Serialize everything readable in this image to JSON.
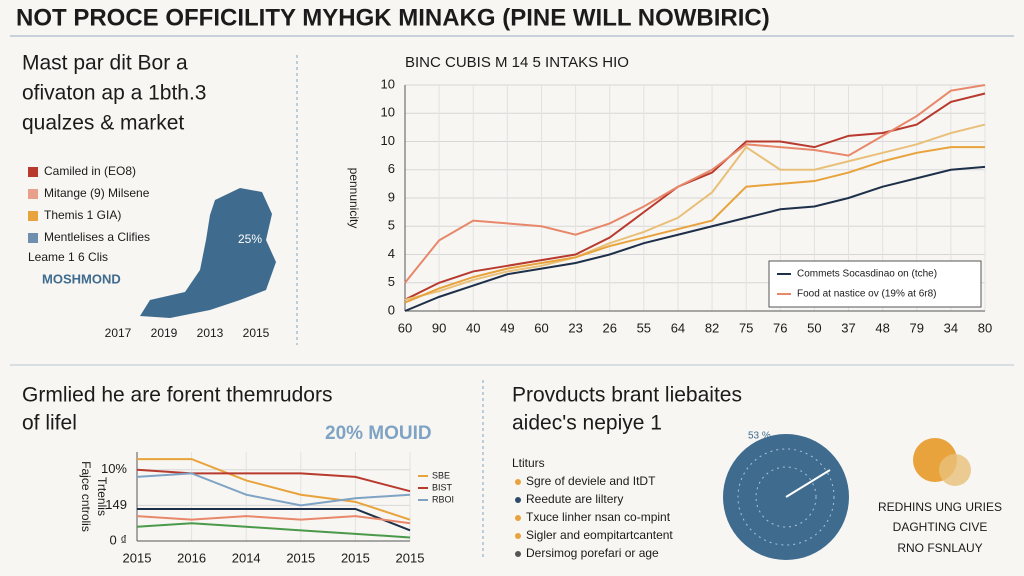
{
  "header": {
    "title": "NOT PROCE OFFICILITY MYHGK MINAKG (PINE WILL NOWBIRIC)"
  },
  "top_left": {
    "heading": [
      "Mast par dit Bor a",
      "ofivaton ap a 1bth.3",
      "qualzes & market"
    ],
    "legend": [
      {
        "label": "Camiled in (EO8)",
        "color": "#b83a2e"
      },
      {
        "label": "Mitange (9) Milsene",
        "color": "#e8a08a"
      },
      {
        "label": "Themis 1 GIA)",
        "color": "#e8a33c"
      },
      {
        "label": "Mentlelises a Clifies",
        "color": "#6f8fae"
      }
    ],
    "note": "Leame 1 6 Clis",
    "map_label": "MOSHMOND",
    "map_value": "25%",
    "years": [
      "2017",
      "2019",
      "2013",
      "2015"
    ]
  },
  "bottom_left": {
    "heading": [
      "Grmlied he are forent themrudors",
      "of lifel"
    ],
    "badge": "20% MOUID"
  },
  "bottom_right": {
    "heading": [
      "Provducts brant liebaites",
      "aidec's nepiye 1"
    ],
    "list_title": "Ltiturs",
    "items": [
      {
        "text": "Sgre of deviele and ItDT",
        "color": "#e8a33c"
      },
      {
        "text": "Reedute are liltery",
        "color": "#2e4a6b"
      },
      {
        "text": "Txuce linher nsan co-mpint",
        "color": "#e8a33c"
      },
      {
        "text": "Sigler and eompitartcantent",
        "color": "#e8a33c"
      },
      {
        "text": "Dersimog porefari or age",
        "color": "#555555"
      }
    ],
    "dial_label": "53 %",
    "side_text": [
      "REDHINS UNG URIES",
      "DAGHTING CIVE",
      "RNO FSNLAUY"
    ]
  },
  "chart_data": [
    {
      "type": "line",
      "title": "BINC CUBIS M 14 5 INTAKS HIO",
      "y_label": "pennunicity",
      "categories": [
        "60",
        "90",
        "40",
        "49",
        "60",
        "23",
        "26",
        "55",
        "64",
        "82",
        "75",
        "76",
        "50",
        "37",
        "48",
        "79",
        "34",
        "80"
      ],
      "ylim": [
        0,
        8
      ],
      "yticks": [
        0,
        {
          "value": 1,
          "label": "5"
        },
        {
          "value": 2,
          "label": "4"
        },
        {
          "value": 3,
          "label": "5"
        },
        {
          "value": 4,
          "label": "9"
        },
        {
          "value": 5,
          "label": "6"
        },
        {
          "value": 6,
          "label": "10"
        },
        {
          "value": 7,
          "label": "10"
        },
        {
          "value": 8,
          "label": "10"
        }
      ],
      "grid": true,
      "legend": "bottom-right",
      "series": [
        {
          "color": "#b83a2e",
          "values": [
            0.4,
            1.0,
            1.4,
            1.6,
            1.8,
            2.0,
            2.6,
            3.5,
            4.4,
            4.9,
            6.0,
            6.0,
            5.8,
            6.2,
            6.3,
            6.6,
            7.4,
            7.7
          ]
        },
        {
          "color": "#e8c07a",
          "values": [
            0.4,
            0.7,
            1.1,
            1.4,
            1.6,
            1.9,
            2.4,
            2.8,
            3.3,
            4.2,
            5.8,
            5.0,
            5.0,
            5.3,
            5.6,
            5.9,
            6.3,
            6.6
          ]
        },
        {
          "color": "#e8a33c",
          "values": [
            0.3,
            0.8,
            1.2,
            1.5,
            1.7,
            1.9,
            2.3,
            2.6,
            2.9,
            3.2,
            4.4,
            4.5,
            4.6,
            4.9,
            5.3,
            5.6,
            5.8,
            5.8
          ]
        },
        {
          "name": "Commets Socasdinao on (tche)",
          "color": "#1e2f4a",
          "values": [
            0,
            0.5,
            0.9,
            1.3,
            1.5,
            1.7,
            2.0,
            2.4,
            2.7,
            3.0,
            3.3,
            3.6,
            3.7,
            4.0,
            4.4,
            4.7,
            5.0,
            5.1
          ]
        },
        {
          "name": "Food at nastice ov (19% at 6r8)",
          "color": "#e8876a",
          "values": [
            1.0,
            2.5,
            3.2,
            3.1,
            3.0,
            2.7,
            3.1,
            3.7,
            4.4,
            5.0,
            5.9,
            5.8,
            5.7,
            5.5,
            6.2,
            6.9,
            7.8,
            8.0
          ]
        }
      ]
    },
    {
      "type": "line",
      "y_label": [
        "Fajce cntrolis",
        "Trtenlis"
      ],
      "categories": [
        "2015",
        "2016",
        "2014",
        "2015",
        "2015",
        "2015"
      ],
      "ylim": [
        0,
        2.5
      ],
      "yticks": [
        {
          "value": 0,
          "label": "0 ₫"
        },
        {
          "value": 1,
          "label": "149"
        },
        {
          "value": 2,
          "label": "10%"
        }
      ],
      "grid": true,
      "series": [
        {
          "name": "SBE",
          "color": "#e8a33c",
          "values": [
            2.3,
            2.3,
            1.7,
            1.3,
            1.1,
            0.6
          ]
        },
        {
          "name": "BIST",
          "color": "#b83a2e",
          "values": [
            2.0,
            1.9,
            1.9,
            1.9,
            1.8,
            1.4
          ]
        },
        {
          "name": "RBOI",
          "color": "#7fa3c4",
          "values": [
            1.8,
            1.9,
            1.3,
            1.0,
            1.2,
            1.3
          ]
        },
        {
          "color": "#1e2f4a",
          "values": [
            0.9,
            0.9,
            0.9,
            0.9,
            0.9,
            0.3
          ]
        },
        {
          "color": "#e8876a",
          "values": [
            0.7,
            0.6,
            0.7,
            0.6,
            0.7,
            0.5
          ]
        },
        {
          "color": "#4a9a4a",
          "values": [
            0.4,
            0.5,
            0.4,
            0.3,
            0.2,
            0.1
          ]
        }
      ]
    }
  ]
}
